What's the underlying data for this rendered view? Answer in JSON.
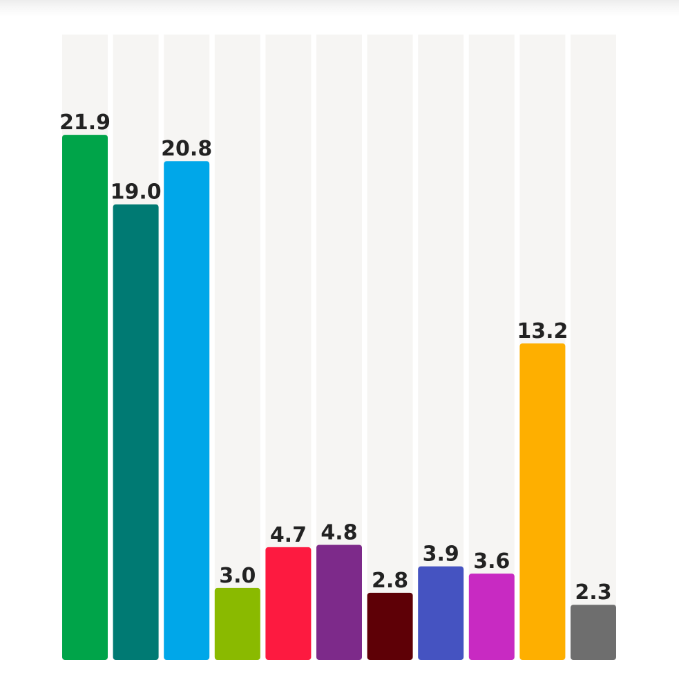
{
  "chart_data": {
    "type": "bar",
    "title": "",
    "xlabel": "",
    "ylabel": "",
    "categories": [],
    "values": [
      21.9,
      19.0,
      20.8,
      3.0,
      4.7,
      4.8,
      2.8,
      3.9,
      3.6,
      13.2,
      2.3
    ],
    "labels": [
      "21.9",
      "19.0",
      "20.8",
      "3.0",
      "4.7",
      "4.8",
      "2.8",
      "3.9",
      "3.6",
      "13.2",
      "2.3"
    ],
    "colors": [
      "#00a449",
      "#007a73",
      "#00a7e9",
      "#8aba00",
      "#fd1a40",
      "#7d2a8a",
      "#5e0006",
      "#4553c1",
      "#c82ac2",
      "#feaf00",
      "#6e6e6e"
    ],
    "background_track_color": "#f6f5f3",
    "ylim": [
      0,
      30
    ],
    "grid": false,
    "legend": "none",
    "data_labels": "above-bars"
  }
}
